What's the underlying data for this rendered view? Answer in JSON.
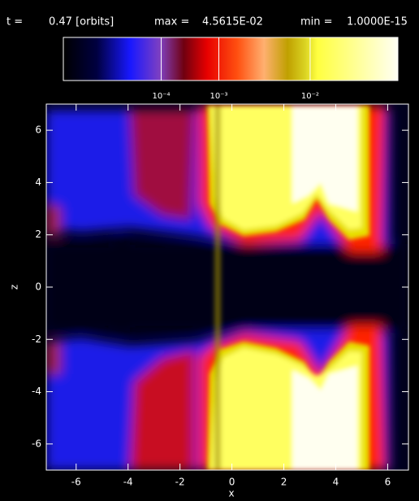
{
  "header": {
    "t_label": "t =",
    "time": "0.47 [orbits]",
    "max_label": "max =",
    "max": {
      "value": 0.045615,
      "label": "4.5615E-02"
    },
    "min_label": "min =",
    "min": {
      "value": 1e-15,
      "label": "1.0000E-15"
    }
  },
  "chart_data": {
    "type": "heatmap",
    "x_label": "x",
    "y_label": "z",
    "colorbar": {
      "power": 0.2,
      "ticks": [
        {
          "value": 0.0001,
          "label": "10⁻⁴"
        },
        {
          "value": 0.001,
          "label": "10⁻³"
        },
        {
          "value": 0.01,
          "label": "10⁻²"
        }
      ]
    },
    "xlim": [
      -7.15,
      6.8
    ],
    "ylim": [
      -7,
      7
    ],
    "xticks": [
      -6,
      -4,
      -2,
      0,
      2,
      4,
      6
    ],
    "yticks": [
      -6,
      -4,
      -2,
      0,
      2,
      4,
      6
    ]
  }
}
